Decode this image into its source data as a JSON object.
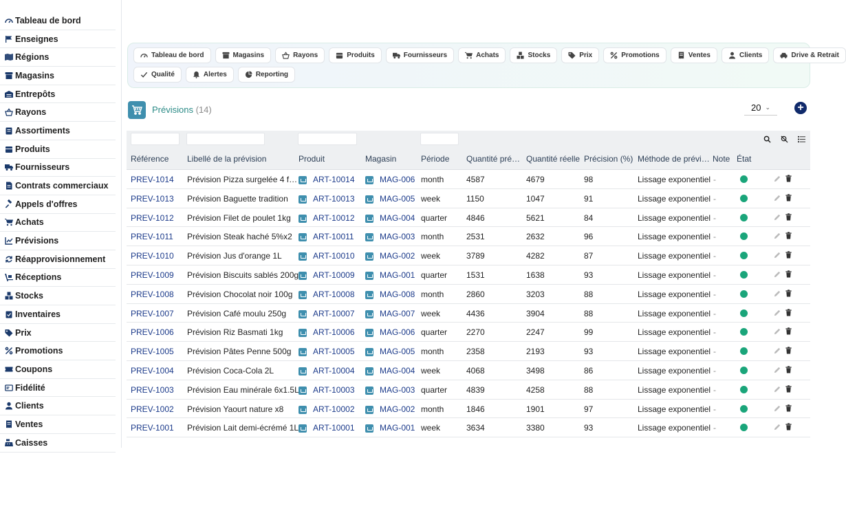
{
  "sidebar": {
    "items": [
      {
        "label": "Tableau de bord",
        "icon": "dashboard-icon"
      },
      {
        "label": "Enseignes",
        "icon": "flag-icon"
      },
      {
        "label": "Régions",
        "icon": "map-icon"
      },
      {
        "label": "Magasins",
        "icon": "store-icon"
      },
      {
        "label": "Entrepôts",
        "icon": "warehouse-icon"
      },
      {
        "label": "Rayons",
        "icon": "basket-icon"
      },
      {
        "label": "Assortiments",
        "icon": "clipboard-icon"
      },
      {
        "label": "Produits",
        "icon": "box-icon"
      },
      {
        "label": "Fournisseurs",
        "icon": "truck-icon"
      },
      {
        "label": "Contrats commerciaux",
        "icon": "contract-icon"
      },
      {
        "label": "Appels d'offres",
        "icon": "gavel-icon"
      },
      {
        "label": "Achats",
        "icon": "cart-icon"
      },
      {
        "label": "Prévisions",
        "icon": "chart-line-icon"
      },
      {
        "label": "Réapprovisionnement",
        "icon": "refresh-icon"
      },
      {
        "label": "Réceptions",
        "icon": "dolly-icon"
      },
      {
        "label": "Stocks",
        "icon": "boxes-icon"
      },
      {
        "label": "Inventaires",
        "icon": "clipboard-check-icon"
      },
      {
        "label": "Prix",
        "icon": "tag-icon"
      },
      {
        "label": "Promotions",
        "icon": "percent-icon"
      },
      {
        "label": "Coupons",
        "icon": "ticket-icon"
      },
      {
        "label": "Fidélité",
        "icon": "card-icon"
      },
      {
        "label": "Clients",
        "icon": "user-icon"
      },
      {
        "label": "Ventes",
        "icon": "receipt-icon"
      },
      {
        "label": "Caisses",
        "icon": "cash-register-icon"
      }
    ]
  },
  "nav": {
    "row1": [
      {
        "label": "Tableau de bord",
        "icon": "dashboard-icon"
      },
      {
        "label": "Magasins",
        "icon": "store-icon"
      },
      {
        "label": "Rayons",
        "icon": "basket-icon"
      },
      {
        "label": "Produits",
        "icon": "box-icon"
      },
      {
        "label": "Fournisseurs",
        "icon": "truck-icon"
      },
      {
        "label": "Achats",
        "icon": "cart-icon"
      },
      {
        "label": "Stocks",
        "icon": "boxes-icon"
      },
      {
        "label": "Prix",
        "icon": "tag-icon"
      },
      {
        "label": "Promotions",
        "icon": "percent-icon"
      },
      {
        "label": "Ventes",
        "icon": "receipt-icon"
      },
      {
        "label": "Clients",
        "icon": "user-icon"
      },
      {
        "label": "Drive & Retrait",
        "icon": "car-icon"
      }
    ],
    "row2": [
      {
        "label": "Qualité",
        "icon": "check-icon"
      },
      {
        "label": "Alertes",
        "icon": "bell-icon"
      },
      {
        "label": "Reporting",
        "icon": "pie-icon"
      }
    ]
  },
  "page": {
    "title": "Prévisions",
    "count": "(14)",
    "page_size": "20",
    "add_label": "+"
  },
  "table": {
    "columns": [
      "Référence",
      "Libellé de la prévision",
      "Produit",
      "Magasin",
      "Période",
      "Quantité pré…",
      "Quantité réelle",
      "Précision (%)",
      "Méthode de prévi…",
      "Note",
      "État"
    ],
    "rows": [
      {
        "ref": "PREV-1014",
        "label": "Prévision Pizza surgelée 4 f…",
        "product": "ART-10014",
        "store": "MAG-006",
        "period": "month",
        "qty_pred": "4587",
        "qty_real": "4679",
        "precision": "98",
        "method": "Lissage exponentiel",
        "note": "-"
      },
      {
        "ref": "PREV-1013",
        "label": "Prévision Baguette tradition",
        "product": "ART-10013",
        "store": "MAG-005",
        "period": "week",
        "qty_pred": "1150",
        "qty_real": "1047",
        "precision": "91",
        "method": "Lissage exponentiel",
        "note": "-"
      },
      {
        "ref": "PREV-1012",
        "label": "Prévision Filet de poulet 1kg",
        "product": "ART-10012",
        "store": "MAG-004",
        "period": "quarter",
        "qty_pred": "4846",
        "qty_real": "5621",
        "precision": "84",
        "method": "Lissage exponentiel",
        "note": "-"
      },
      {
        "ref": "PREV-1011",
        "label": "Prévision Steak haché 5%x2",
        "product": "ART-10011",
        "store": "MAG-003",
        "period": "month",
        "qty_pred": "2531",
        "qty_real": "2632",
        "precision": "96",
        "method": "Lissage exponentiel",
        "note": "-"
      },
      {
        "ref": "PREV-1010",
        "label": "Prévision Jus d'orange 1L",
        "product": "ART-10010",
        "store": "MAG-002",
        "period": "week",
        "qty_pred": "3789",
        "qty_real": "4282",
        "precision": "87",
        "method": "Lissage exponentiel",
        "note": "-"
      },
      {
        "ref": "PREV-1009",
        "label": "Prévision Biscuits sablés 200g",
        "product": "ART-10009",
        "store": "MAG-001",
        "period": "quarter",
        "qty_pred": "1531",
        "qty_real": "1638",
        "precision": "93",
        "method": "Lissage exponentiel",
        "note": "-"
      },
      {
        "ref": "PREV-1008",
        "label": "Prévision Chocolat noir 100g",
        "product": "ART-10008",
        "store": "MAG-008",
        "period": "month",
        "qty_pred": "2860",
        "qty_real": "3203",
        "precision": "88",
        "method": "Lissage exponentiel",
        "note": "-"
      },
      {
        "ref": "PREV-1007",
        "label": "Prévision Café moulu 250g",
        "product": "ART-10007",
        "store": "MAG-007",
        "period": "week",
        "qty_pred": "4436",
        "qty_real": "3904",
        "precision": "88",
        "method": "Lissage exponentiel",
        "note": "-"
      },
      {
        "ref": "PREV-1006",
        "label": "Prévision Riz Basmati 1kg",
        "product": "ART-10006",
        "store": "MAG-006",
        "period": "quarter",
        "qty_pred": "2270",
        "qty_real": "2247",
        "precision": "99",
        "method": "Lissage exponentiel",
        "note": "-"
      },
      {
        "ref": "PREV-1005",
        "label": "Prévision Pâtes Penne 500g",
        "product": "ART-10005",
        "store": "MAG-005",
        "period": "month",
        "qty_pred": "2358",
        "qty_real": "2193",
        "precision": "93",
        "method": "Lissage exponentiel",
        "note": "-"
      },
      {
        "ref": "PREV-1004",
        "label": "Prévision Coca-Cola 2L",
        "product": "ART-10004",
        "store": "MAG-004",
        "period": "week",
        "qty_pred": "4068",
        "qty_real": "3498",
        "precision": "86",
        "method": "Lissage exponentiel",
        "note": "-"
      },
      {
        "ref": "PREV-1003",
        "label": "Prévision Eau minérale 6x1.5L",
        "product": "ART-10003",
        "store": "MAG-003",
        "period": "quarter",
        "qty_pred": "4839",
        "qty_real": "4258",
        "precision": "88",
        "method": "Lissage exponentiel",
        "note": "-"
      },
      {
        "ref": "PREV-1002",
        "label": "Prévision Yaourt nature x8",
        "product": "ART-10002",
        "store": "MAG-002",
        "period": "month",
        "qty_pred": "1846",
        "qty_real": "1901",
        "precision": "97",
        "method": "Lissage exponentiel",
        "note": "-"
      },
      {
        "ref": "PREV-1001",
        "label": "Prévision Lait demi-écrémé 1L",
        "product": "ART-10001",
        "store": "MAG-001",
        "period": "week",
        "qty_pred": "3634",
        "qty_real": "3380",
        "precision": "93",
        "method": "Lissage exponentiel",
        "note": "-"
      }
    ]
  },
  "colors": {
    "accent": "#3f8fae",
    "link": "#1b3a8a",
    "title": "#2a8a86",
    "status_ok": "#1aa57a",
    "add_button": "#102a6b"
  }
}
